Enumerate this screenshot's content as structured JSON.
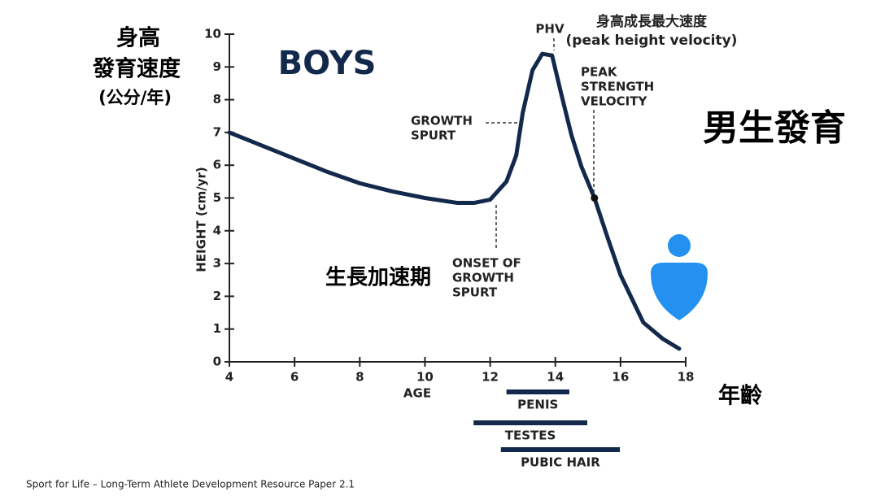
{
  "chart_data": {
    "type": "line",
    "title": "BOYS",
    "heading": "男生發育",
    "y_label": "HEIGHT (cm/yr)",
    "x_label": "AGE",
    "y_label_cn": [
      "身高",
      "發育速度",
      "(公分/年)"
    ],
    "x_label_cn": "年齡",
    "phase_label": "生長加速期",
    "xlim": [
      4,
      18
    ],
    "ylim": [
      0,
      10
    ],
    "xticks": [
      4,
      6,
      8,
      10,
      12,
      14,
      16,
      18
    ],
    "yticks": [
      0,
      1,
      2,
      3,
      4,
      5,
      6,
      7,
      8,
      9,
      10
    ],
    "series": [
      {
        "name": "BOYS",
        "color": "#13294b",
        "x": [
          4,
          5,
          6,
          7,
          8,
          9,
          10,
          11,
          11.5,
          12,
          12.5,
          12.8,
          13,
          13.3,
          13.6,
          13.9,
          14.2,
          14.5,
          14.8,
          15.2,
          15.6,
          16,
          16.7,
          17.3,
          17.8
        ],
        "values": [
          7,
          6.6,
          6.2,
          5.8,
          5.45,
          5.2,
          5.0,
          4.85,
          4.85,
          4.95,
          5.5,
          6.3,
          7.6,
          8.9,
          9.4,
          9.35,
          8.1,
          6.9,
          5.96,
          5.0,
          3.8,
          2.65,
          1.2,
          0.7,
          0.4
        ]
      }
    ],
    "annotations": [
      {
        "lines": [
          "PHV"
        ],
        "x": 13.9,
        "y": 9.4
      },
      {
        "lines": [
          "身高成長最大速度",
          "(peak height velocity)"
        ]
      },
      {
        "lines": [
          "GROWTH",
          "SPURT"
        ],
        "x": 13.2,
        "y": 7.3
      },
      {
        "lines": [
          "PEAK",
          "STRENGTH",
          "VELOCITY"
        ],
        "x": 15.2,
        "y": 5.0
      },
      {
        "lines": [
          "ONSET OF",
          "GROWTH",
          "SPURT"
        ],
        "x": 12.2,
        "y": 4.85
      }
    ],
    "ranges": [
      {
        "label": "PENIS",
        "start": 12.5,
        "end": 14.43
      },
      {
        "label": "TESTES",
        "start": 11.49,
        "end": 14.98
      },
      {
        "label": "PUBIC HAIR",
        "start": 12.33,
        "end": 15.98
      }
    ],
    "source": "Sport for Life – Long-Term Athlete Development Resource Paper 2.1"
  }
}
